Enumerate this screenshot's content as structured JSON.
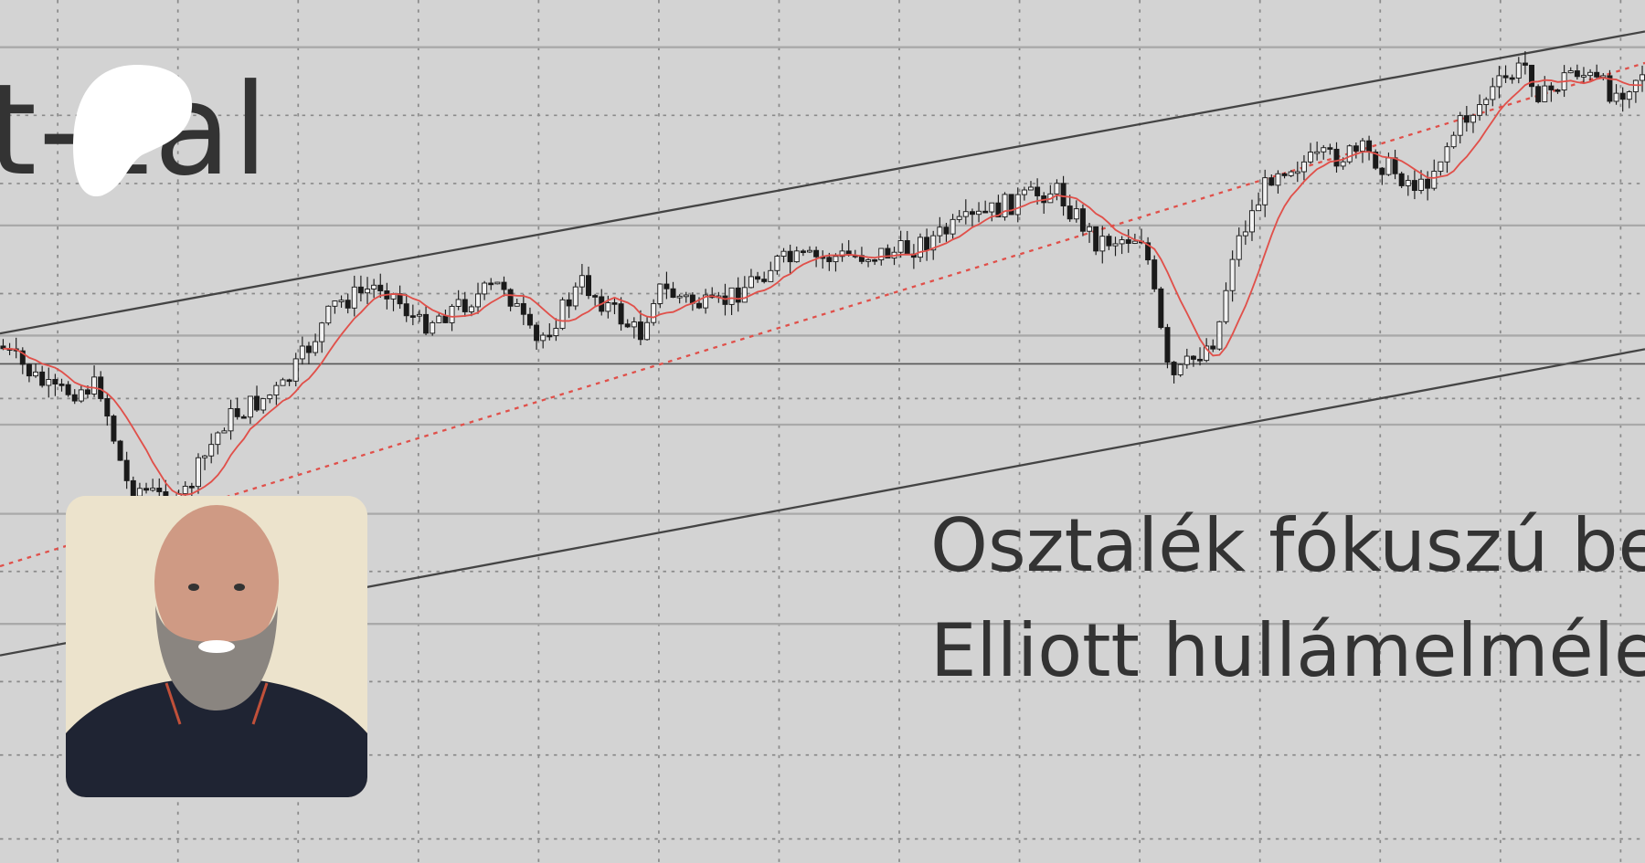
{
  "logo": {
    "text": "t-zal"
  },
  "headline": {
    "line1": "Osztalék fókuszú be",
    "line2": "Elliott hullámelméle"
  },
  "colors": {
    "background": "#d3d3d3",
    "candles": "#1a1a1a",
    "moving_average": "#e0504a",
    "trend_lines": "#444444",
    "text": "#333333"
  },
  "photo": {
    "subject": "bearded man in navy polo shirt"
  }
}
